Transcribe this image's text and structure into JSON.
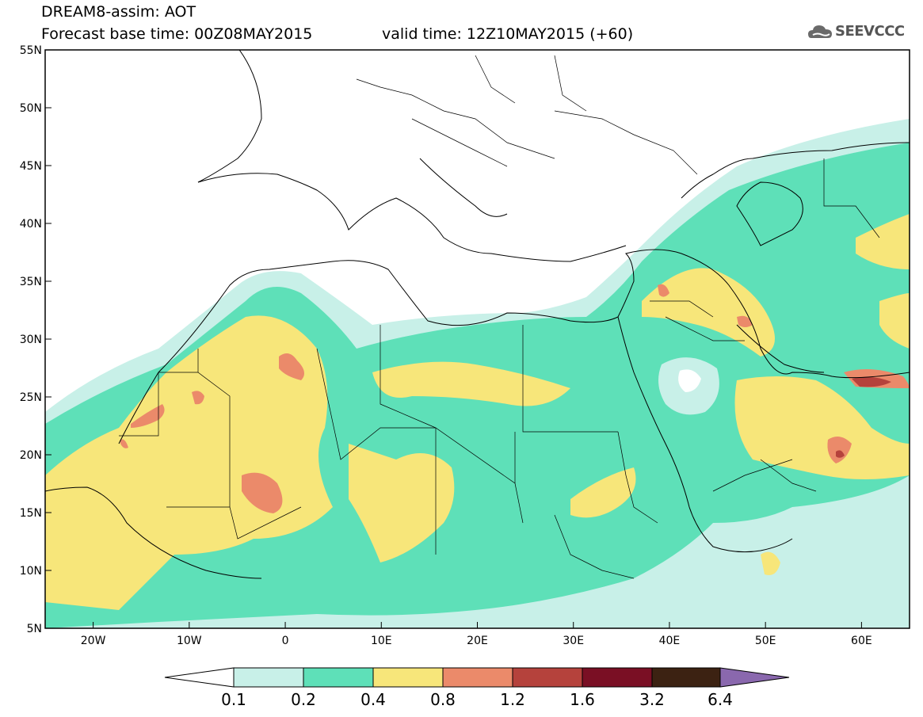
{
  "header": {
    "title_line1": "DREAM8-assim: AOT",
    "base_time": "Forecast base time: 00Z08MAY2015",
    "valid_time": "valid time: 12Z10MAY2015 (+60)",
    "logo_text": "SEEVCCC"
  },
  "map": {
    "lon_range": [
      -25,
      65
    ],
    "lat_range": [
      5,
      55
    ],
    "lon_ticks": [
      {
        "value": -20,
        "label": "20W"
      },
      {
        "value": -10,
        "label": "10W"
      },
      {
        "value": 0,
        "label": "0"
      },
      {
        "value": 10,
        "label": "10E"
      },
      {
        "value": 20,
        "label": "20E"
      },
      {
        "value": 30,
        "label": "30E"
      },
      {
        "value": 40,
        "label": "40E"
      },
      {
        "value": 50,
        "label": "50E"
      },
      {
        "value": 60,
        "label": "60E"
      }
    ],
    "lat_ticks": [
      {
        "value": 5,
        "label": "5N"
      },
      {
        "value": 10,
        "label": "10N"
      },
      {
        "value": 15,
        "label": "15N"
      },
      {
        "value": 20,
        "label": "20N"
      },
      {
        "value": 25,
        "label": "25N"
      },
      {
        "value": 30,
        "label": "30N"
      },
      {
        "value": 35,
        "label": "35N"
      },
      {
        "value": 40,
        "label": "40N"
      },
      {
        "value": 45,
        "label": "45N"
      },
      {
        "value": 50,
        "label": "50N"
      },
      {
        "value": 55,
        "label": "55N"
      }
    ]
  },
  "colorbar": {
    "labels": [
      "0.1",
      "0.2",
      "0.4",
      "0.8",
      "1.2",
      "1.6",
      "3.2",
      "6.4"
    ],
    "colors": [
      "#ffffff",
      "#c8f0e8",
      "#5ee0b8",
      "#f7e67a",
      "#eb8a6a",
      "#b5423c",
      "#7a0f24",
      "#3c2212",
      "#8a68ae"
    ]
  }
}
